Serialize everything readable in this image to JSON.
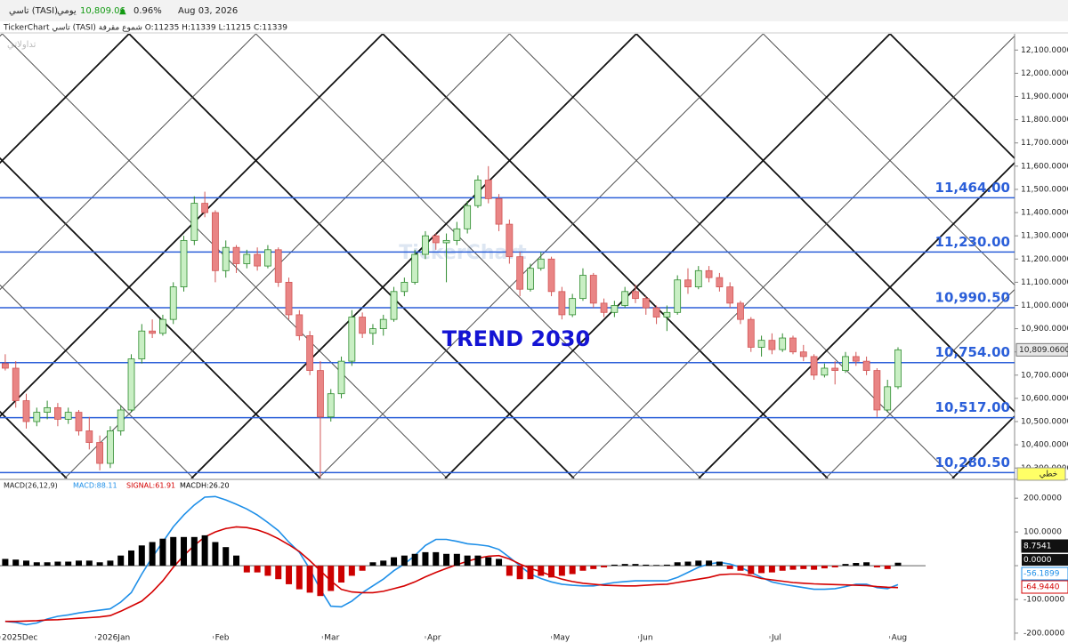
{
  "header": {
    "ticker": "تاسي (TASI)",
    "period": "يومي",
    "price": "10,809.06",
    "arrow": "▲",
    "change": "0.96%",
    "date": "Aug 03, 2026",
    "chart_info": "TickerChart تاسي (TASI) شموع مقرفة O:11235 H:11339 L:11215 C:11339",
    "logo": "تداولاتي",
    "watermark": "TickerChart",
    "style_button": "خطي"
  },
  "chart_data": [
    {
      "type": "candlestick",
      "annotation": "TREND 2030",
      "color_up": "#c9efc4",
      "color_down": "#e98585",
      "xlim": [
        -0.5,
        96.1
      ],
      "ylim": [
        10255,
        12170
      ],
      "yticks": [
        {
          "value": 10300,
          "label": "10,300.0000"
        },
        {
          "value": 10400,
          "label": "10,400.0000"
        },
        {
          "value": 10500,
          "label": "10,500.0000"
        },
        {
          "value": 10600,
          "label": "10,600.0000"
        },
        {
          "value": 10700,
          "label": "10,700.0000"
        },
        {
          "value": 10800,
          "label": "10,800.0000"
        },
        {
          "value": 10900,
          "label": "10,900.0000"
        },
        {
          "value": 11000,
          "label": "11,000.0000"
        },
        {
          "value": 11100,
          "label": "11,100.0000"
        },
        {
          "value": 11200,
          "label": "11,200.0000"
        },
        {
          "value": 11300,
          "label": "11,300.0000"
        },
        {
          "value": 11400,
          "label": "11,400.0000"
        },
        {
          "value": 11500,
          "label": "11,500.0000"
        },
        {
          "value": 11600,
          "label": "11,600.0000"
        },
        {
          "value": 11700,
          "label": "11,700.0000"
        },
        {
          "value": 11800,
          "label": "11,800.0000"
        },
        {
          "value": 11900,
          "label": "11,900.0000"
        },
        {
          "value": 12000,
          "label": "12,000.0000"
        },
        {
          "value": 12100,
          "label": "12,100.0000"
        }
      ],
      "level_color": "#2b5fd9",
      "levels": [
        {
          "value": 11464,
          "label": "11,464.00"
        },
        {
          "value": 11230,
          "label": "11,230.00"
        },
        {
          "value": 10990.5,
          "label": "10,990.50"
        },
        {
          "value": 10754,
          "label": "10,754.00"
        },
        {
          "value": 10517,
          "label": "10,517.00"
        },
        {
          "value": 10280.5,
          "label": "10,280.50"
        }
      ],
      "last_price_label": {
        "value": 10809.06,
        "label": "10,809.0600"
      },
      "candles": [
        [
          10750,
          10790,
          10720,
          10730
        ],
        [
          10730,
          10760,
          10560,
          10590
        ],
        [
          10590,
          10620,
          10470,
          10500
        ],
        [
          10500,
          10560,
          10480,
          10540
        ],
        [
          10540,
          10590,
          10510,
          10560
        ],
        [
          10560,
          10580,
          10480,
          10510
        ],
        [
          10510,
          10560,
          10490,
          10540
        ],
        [
          10540,
          10550,
          10440,
          10460
        ],
        [
          10460,
          10520,
          10380,
          10410
        ],
        [
          10410,
          10440,
          10290,
          10320
        ],
        [
          10320,
          10480,
          10300,
          10460
        ],
        [
          10460,
          10570,
          10440,
          10550
        ],
        [
          10550,
          10790,
          10540,
          10770
        ],
        [
          10770,
          10920,
          10750,
          10890
        ],
        [
          10890,
          10940,
          10860,
          10880
        ],
        [
          10880,
          10960,
          10870,
          10940
        ],
        [
          10940,
          11100,
          10920,
          11080
        ],
        [
          11080,
          11300,
          11060,
          11280
        ],
        [
          11280,
          11470,
          11260,
          11440
        ],
        [
          11440,
          11490,
          11380,
          11400
        ],
        [
          11400,
          11410,
          11100,
          11150
        ],
        [
          11150,
          11280,
          11120,
          11250
        ],
        [
          11250,
          11260,
          11140,
          11180
        ],
        [
          11180,
          11240,
          11160,
          11220
        ],
        [
          11220,
          11250,
          11150,
          11170
        ],
        [
          11170,
          11260,
          11160,
          11240
        ],
        [
          11240,
          11250,
          11080,
          11100
        ],
        [
          11100,
          11120,
          10940,
          10960
        ],
        [
          10960,
          10980,
          10850,
          10870
        ],
        [
          10870,
          10890,
          10700,
          10720
        ],
        [
          10720,
          10760,
          10260,
          10520
        ],
        [
          10520,
          10640,
          10500,
          10620
        ],
        [
          10620,
          10780,
          10600,
          10760
        ],
        [
          10760,
          10980,
          10740,
          10950
        ],
        [
          10950,
          10970,
          10860,
          10880
        ],
        [
          10880,
          10920,
          10830,
          10900
        ],
        [
          10900,
          10960,
          10870,
          10940
        ],
        [
          10940,
          11080,
          10930,
          11060
        ],
        [
          11060,
          11120,
          11040,
          11100
        ],
        [
          11100,
          11240,
          11090,
          11220
        ],
        [
          11220,
          11320,
          11200,
          11300
        ],
        [
          11300,
          11310,
          11240,
          11270
        ],
        [
          11270,
          11310,
          11100,
          11280
        ],
        [
          11280,
          11360,
          11260,
          11330
        ],
        [
          11330,
          11450,
          11310,
          11430
        ],
        [
          11430,
          11560,
          11420,
          11540
        ],
        [
          11540,
          11600,
          11440,
          11460
        ],
        [
          11460,
          11480,
          11320,
          11350
        ],
        [
          11350,
          11370,
          11180,
          11210
        ],
        [
          11210,
          11230,
          11040,
          11070
        ],
        [
          11070,
          11180,
          11060,
          11160
        ],
        [
          11160,
          11230,
          11150,
          11200
        ],
        [
          11200,
          11210,
          11040,
          11060
        ],
        [
          11060,
          11080,
          10940,
          10960
        ],
        [
          10960,
          11050,
          10950,
          11030
        ],
        [
          11030,
          11160,
          11020,
          11130
        ],
        [
          11130,
          11140,
          10990,
          11010
        ],
        [
          11010,
          11030,
          10950,
          10970
        ],
        [
          10970,
          11020,
          10950,
          11000
        ],
        [
          11000,
          11080,
          10990,
          11060
        ],
        [
          11060,
          11090,
          11010,
          11030
        ],
        [
          11030,
          11040,
          10960,
          10990
        ],
        [
          10990,
          11000,
          10920,
          10950
        ],
        [
          10950,
          11000,
          10890,
          10970
        ],
        [
          10970,
          11130,
          10960,
          11110
        ],
        [
          11110,
          11160,
          11050,
          11080
        ],
        [
          11080,
          11170,
          11070,
          11150
        ],
        [
          11150,
          11170,
          11100,
          11120
        ],
        [
          11120,
          11140,
          11060,
          11080
        ],
        [
          11080,
          11100,
          10990,
          11010
        ],
        [
          11010,
          11020,
          10920,
          10940
        ],
        [
          10940,
          10950,
          10800,
          10820
        ],
        [
          10820,
          10870,
          10780,
          10850
        ],
        [
          10850,
          10880,
          10790,
          10810
        ],
        [
          10810,
          10880,
          10800,
          10860
        ],
        [
          10860,
          10870,
          10790,
          10800
        ],
        [
          10800,
          10830,
          10760,
          10780
        ],
        [
          10780,
          10790,
          10680,
          10700
        ],
        [
          10700,
          10750,
          10690,
          10730
        ],
        [
          10730,
          10760,
          10660,
          10720
        ],
        [
          10720,
          10800,
          10710,
          10780
        ],
        [
          10780,
          10800,
          10740,
          10760
        ],
        [
          10760,
          10780,
          10700,
          10720
        ],
        [
          10720,
          10730,
          10520,
          10550
        ],
        [
          10550,
          10680,
          10540,
          10650
        ],
        [
          10650,
          10820,
          10640,
          10809.06
        ]
      ]
    },
    {
      "type": "macd",
      "title": "MACD(26,12,9)",
      "xlim": [
        -0.5,
        96.1
      ],
      "ylim": [
        -216,
        240
      ],
      "yticks": [
        {
          "value": 200,
          "label": "200.0000"
        },
        {
          "value": 100,
          "label": "100.0000"
        },
        {
          "value": 0,
          "label": "0.0000"
        },
        {
          "value": -100,
          "label": "-100.0000"
        },
        {
          "value": -200,
          "label": "-200.0000"
        }
      ],
      "xticks": [
        {
          "value": -0.5,
          "label": "2025Dec"
        },
        {
          "value": 8.6,
          "label": "2026Jan"
        },
        {
          "value": 19.8,
          "label": "Feb"
        },
        {
          "value": 30.2,
          "label": "Mar"
        },
        {
          "value": 40,
          "label": "Apr"
        },
        {
          "value": 52,
          "label": "May"
        },
        {
          "value": 60.3,
          "label": "Jun"
        },
        {
          "value": 72.8,
          "label": "Jul"
        },
        {
          "value": 84.2,
          "label": "Aug"
        }
      ],
      "series": [
        {
          "name": "MACD:88.11",
          "kind": "line",
          "color": "#1e8fe8",
          "last_label": "-56.1899",
          "values": [
            -165,
            -168,
            -175,
            -170,
            -158,
            -150,
            -146,
            -140,
            -136,
            -132,
            -128,
            -108,
            -80,
            -25,
            25,
            70,
            115,
            150,
            180,
            203,
            205,
            195,
            182,
            168,
            150,
            128,
            104,
            70,
            40,
            -10,
            -70,
            -120,
            -122,
            -105,
            -80,
            -60,
            -40,
            -15,
            5,
            30,
            60,
            78,
            78,
            72,
            65,
            62,
            58,
            48,
            25,
            0,
            -25,
            -38,
            -48,
            -55,
            -58,
            -60,
            -60,
            -55,
            -50,
            -47,
            -45,
            -45,
            -45,
            -45,
            -35,
            -20,
            -5,
            5,
            10,
            5,
            -5,
            -20,
            -35,
            -48,
            -55,
            -60,
            -65,
            -70,
            -70,
            -68,
            -62,
            -55,
            -55,
            -65,
            -68,
            -56.1899
          ]
        },
        {
          "name": "SIGNAL:61.91",
          "kind": "line",
          "color": "#d40000",
          "last_label": "-64.9440",
          "values": [
            -165,
            -165,
            -164,
            -163,
            -161,
            -160,
            -158,
            -156,
            -154,
            -152,
            -148,
            -135,
            -120,
            -105,
            -78,
            -45,
            -5,
            30,
            60,
            85,
            100,
            110,
            115,
            113,
            106,
            95,
            80,
            62,
            42,
            15,
            -15,
            -45,
            -70,
            -78,
            -80,
            -80,
            -76,
            -68,
            -60,
            -48,
            -33,
            -20,
            -8,
            3,
            13,
            22,
            28,
            30,
            20,
            5,
            -8,
            -18,
            -30,
            -40,
            -47,
            -52,
            -55,
            -58,
            -59,
            -60,
            -60,
            -58,
            -56,
            -55,
            -50,
            -45,
            -40,
            -35,
            -27,
            -25,
            -25,
            -30,
            -38,
            -42,
            -46,
            -50,
            -52,
            -54,
            -55,
            -56,
            -57,
            -58,
            -59,
            -62,
            -64,
            -64.944
          ]
        },
        {
          "name": "MACDH:26.20",
          "kind": "bar",
          "color": "#000000",
          "neg_color": "#cc0000",
          "last_label": "8.7541",
          "values": [
            20,
            18,
            15,
            10,
            10,
            12,
            12,
            15,
            15,
            10,
            15,
            30,
            45,
            60,
            70,
            80,
            85,
            85,
            85,
            90,
            70,
            55,
            30,
            -20,
            -20,
            -30,
            -40,
            -55,
            -70,
            -80,
            -90,
            -75,
            -50,
            -30,
            -15,
            10,
            15,
            25,
            30,
            35,
            40,
            40,
            35,
            35,
            30,
            30,
            25,
            20,
            -30,
            -40,
            -40,
            -30,
            -35,
            -30,
            -25,
            -15,
            -10,
            -5,
            3,
            5,
            5,
            3,
            2,
            3,
            10,
            12,
            15,
            15,
            12,
            -10,
            -15,
            -25,
            -22,
            -20,
            -15,
            -12,
            -10,
            -12,
            -8,
            -5,
            5,
            8,
            10,
            -5,
            -10,
            8.7541
          ]
        }
      ]
    }
  ]
}
